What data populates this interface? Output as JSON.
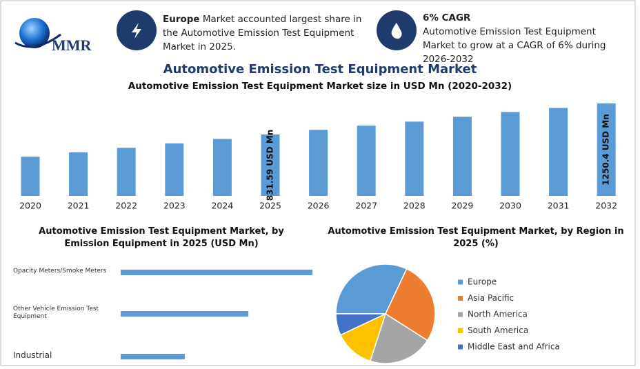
{
  "header": {
    "logo": "MMR",
    "cards": [
      {
        "bold": "Europe",
        "text": " Market accounted largest share in the Automotive Emission Test Equipment Market in 2025."
      },
      {
        "bold": "6% CAGR",
        "text": "Automotive Emission Test Equipment Market to grow at a CAGR of 6% during 2026-2032"
      }
    ]
  },
  "title": "Automotive Emission Test Equipment Market",
  "chart_data": [
    {
      "type": "bar",
      "title": "Automotive Emission Test Equipment Market size in USD Mn (2020-2032)",
      "categories": [
        "2020",
        "2021",
        "2022",
        "2023",
        "2024",
        "2025",
        "2026",
        "2027",
        "2028",
        "2029",
        "2030",
        "2031",
        "2032"
      ],
      "values": [
        530,
        590,
        650,
        710,
        770,
        831.59,
        893,
        950,
        1005,
        1070,
        1135,
        1190,
        1250.4
      ],
      "value_labels": [
        null,
        null,
        null,
        null,
        null,
        "831.59 USD Mn",
        null,
        null,
        null,
        null,
        null,
        null,
        "1250.4 USD Mn"
      ],
      "color": "#5b9bd5"
    },
    {
      "type": "hbar",
      "title": "Automotive Emission Test Equipment Market, by Emission Equipment in 2025 (USD Mn)",
      "categories": [
        "Opacity Meters/Smoke Meters",
        "Other Vehicle Emission Test Equipment",
        "Industrial"
      ],
      "values": [
        416,
        277,
        139
      ],
      "color": "#5b9bd5"
    },
    {
      "type": "pie",
      "title": "Automotive Emission Test Equipment Market, by Region in 2025 (%)",
      "series": [
        {
          "name": "Europe",
          "color": "#5b9bd5",
          "values": [
            32
          ]
        },
        {
          "name": "Asia Pacific",
          "color": "#ed7d31",
          "values": [
            27
          ]
        },
        {
          "name": "North America",
          "color": "#a5a5a5",
          "values": [
            21
          ]
        },
        {
          "name": "South America",
          "color": "#ffc000",
          "values": [
            13
          ]
        },
        {
          "name": "Middle East and Africa",
          "color": "#4472c4",
          "values": [
            7
          ]
        }
      ],
      "legend": "right"
    }
  ]
}
